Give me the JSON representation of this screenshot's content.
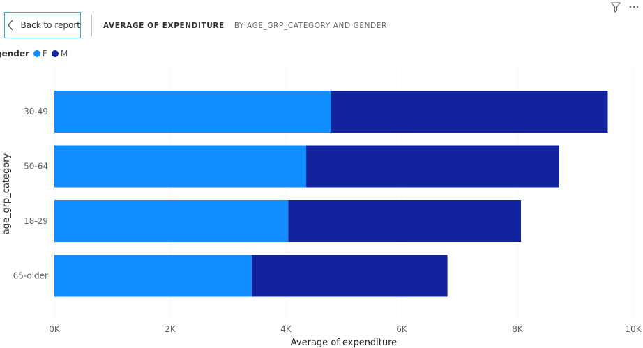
{
  "toolbar": {
    "back_label": "Back to report",
    "filter_icon": "filter-icon",
    "more_icon": "more-options-icon"
  },
  "visual": {
    "title": "AVERAGE OF EXPENDITURE",
    "subtitle": "BY AGE_GRP_CATEGORY AND GENDER"
  },
  "legend": {
    "title": "gender",
    "items": [
      {
        "label": "F",
        "color": "#118dff"
      },
      {
        "label": "M",
        "color": "#12239e"
      }
    ]
  },
  "chart_data": {
    "type": "bar",
    "orientation": "horizontal",
    "stacked": true,
    "categories": [
      "30-49",
      "50-64",
      "18-29",
      "65-older"
    ],
    "series": [
      {
        "name": "F",
        "color": "#118dff",
        "values": [
          4780,
          4350,
          4040,
          3410
        ]
      },
      {
        "name": "M",
        "color": "#12239e",
        "values": [
          4780,
          4370,
          4020,
          3380
        ]
      }
    ],
    "xlabel": "Average of expenditure",
    "ylabel": "age_grp_category",
    "xlim": [
      0,
      10000
    ],
    "xticks": [
      0,
      2000,
      4000,
      6000,
      8000,
      10000
    ],
    "xtick_labels": [
      "0K",
      "2K",
      "4K",
      "6K",
      "8K",
      "10K"
    ],
    "grid": "vertical dotted",
    "legend_position": "top-left"
  }
}
